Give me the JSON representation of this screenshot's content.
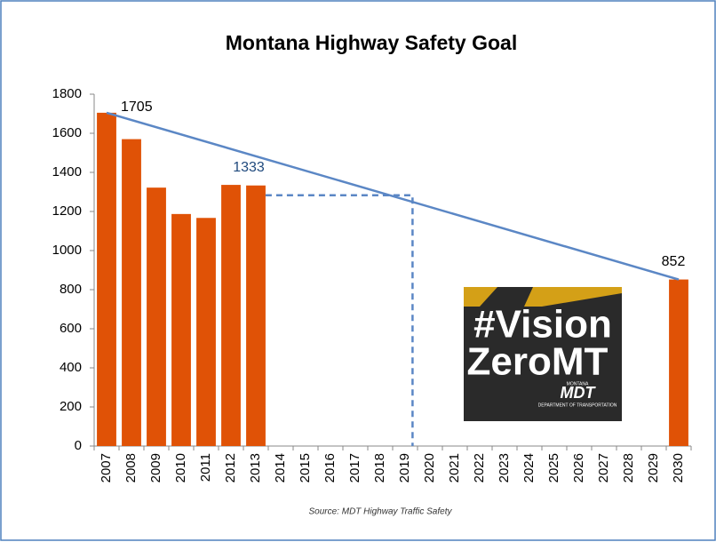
{
  "chart_data": {
    "type": "bar",
    "title": "Montana Highway Safety Goal",
    "categories": [
      "2007",
      "2008",
      "2009",
      "2010",
      "2011",
      "2012",
      "2013",
      "2014",
      "2015",
      "2016",
      "2017",
      "2018",
      "2019",
      "2020",
      "2021",
      "2022",
      "2023",
      "2024",
      "2025",
      "2026",
      "2027",
      "2028",
      "2029",
      "2030"
    ],
    "values": [
      1705,
      1570,
      1322,
      1187,
      1167,
      1336,
      1333,
      null,
      null,
      null,
      null,
      null,
      null,
      null,
      null,
      null,
      null,
      null,
      null,
      null,
      null,
      null,
      null,
      852
    ],
    "value_labels": [
      "1705",
      null,
      null,
      null,
      null,
      null,
      "1333",
      null,
      null,
      null,
      null,
      null,
      null,
      null,
      null,
      null,
      null,
      null,
      null,
      null,
      null,
      null,
      null,
      "852"
    ],
    "color": "#e05206",
    "goal_line_color": "#5b87c5",
    "ylim": [
      0,
      1800
    ],
    "yticks": [
      0,
      200,
      400,
      600,
      800,
      1000,
      1200,
      1400,
      1600,
      1800
    ],
    "source": "Source: MDT Highway Traffic Safety",
    "logo": {
      "line1": "#Vision",
      "line2": "ZeroMT",
      "brand": "MDT",
      "state": "MONTANA",
      "department": "DEPARTMENT OF TRANSPORTATION"
    }
  }
}
